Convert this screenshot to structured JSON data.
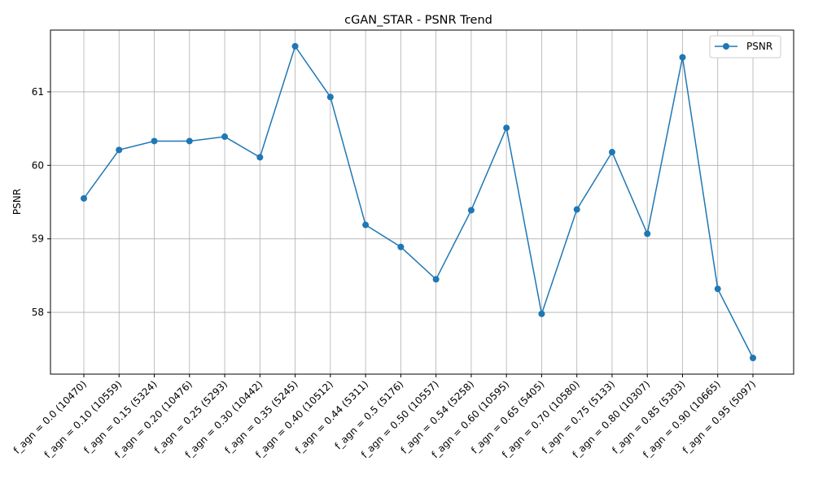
{
  "chart_data": {
    "type": "line",
    "title": "cGAN_STAR - PSNR Trend",
    "xlabel": "",
    "ylabel": "PSNR",
    "categories": [
      "f_agn = 0.0 (10470)",
      "f_agn = 0.10 (10559)",
      "f_agn = 0.15 (5324)",
      "f_agn = 0.20 (10476)",
      "f_agn = 0.25 (5293)",
      "f_agn = 0.30 (10442)",
      "f_agn = 0.35 (5245)",
      "f_agn = 0.40 (10512)",
      "f_agn = 0.44 (5311)",
      "f_agn = 0.5 (5176)",
      "f_agn = 0.50 (10557)",
      "f_agn = 0.54 (5258)",
      "f_agn = 0.60 (10595)",
      "f_agn = 0.65 (5405)",
      "f_agn = 0.70 (10580)",
      "f_agn = 0.75 (5133)",
      "f_agn = 0.80 (10307)",
      "f_agn = 0.85 (5303)",
      "f_agn = 0.90 (10665)",
      "f_agn = 0.95 (5097)"
    ],
    "series": [
      {
        "name": "PSNR",
        "color": "#1f77b4",
        "values": [
          59.55,
          60.21,
          60.33,
          60.33,
          60.39,
          60.11,
          61.62,
          60.93,
          59.19,
          58.89,
          58.45,
          59.39,
          60.51,
          57.98,
          59.4,
          60.18,
          59.07,
          61.47,
          58.32,
          57.38
        ]
      }
    ],
    "yticks": [
      58,
      59,
      60,
      61
    ],
    "ylim": [
      57.16,
      61.84
    ],
    "grid": true,
    "legend": "top-right"
  }
}
